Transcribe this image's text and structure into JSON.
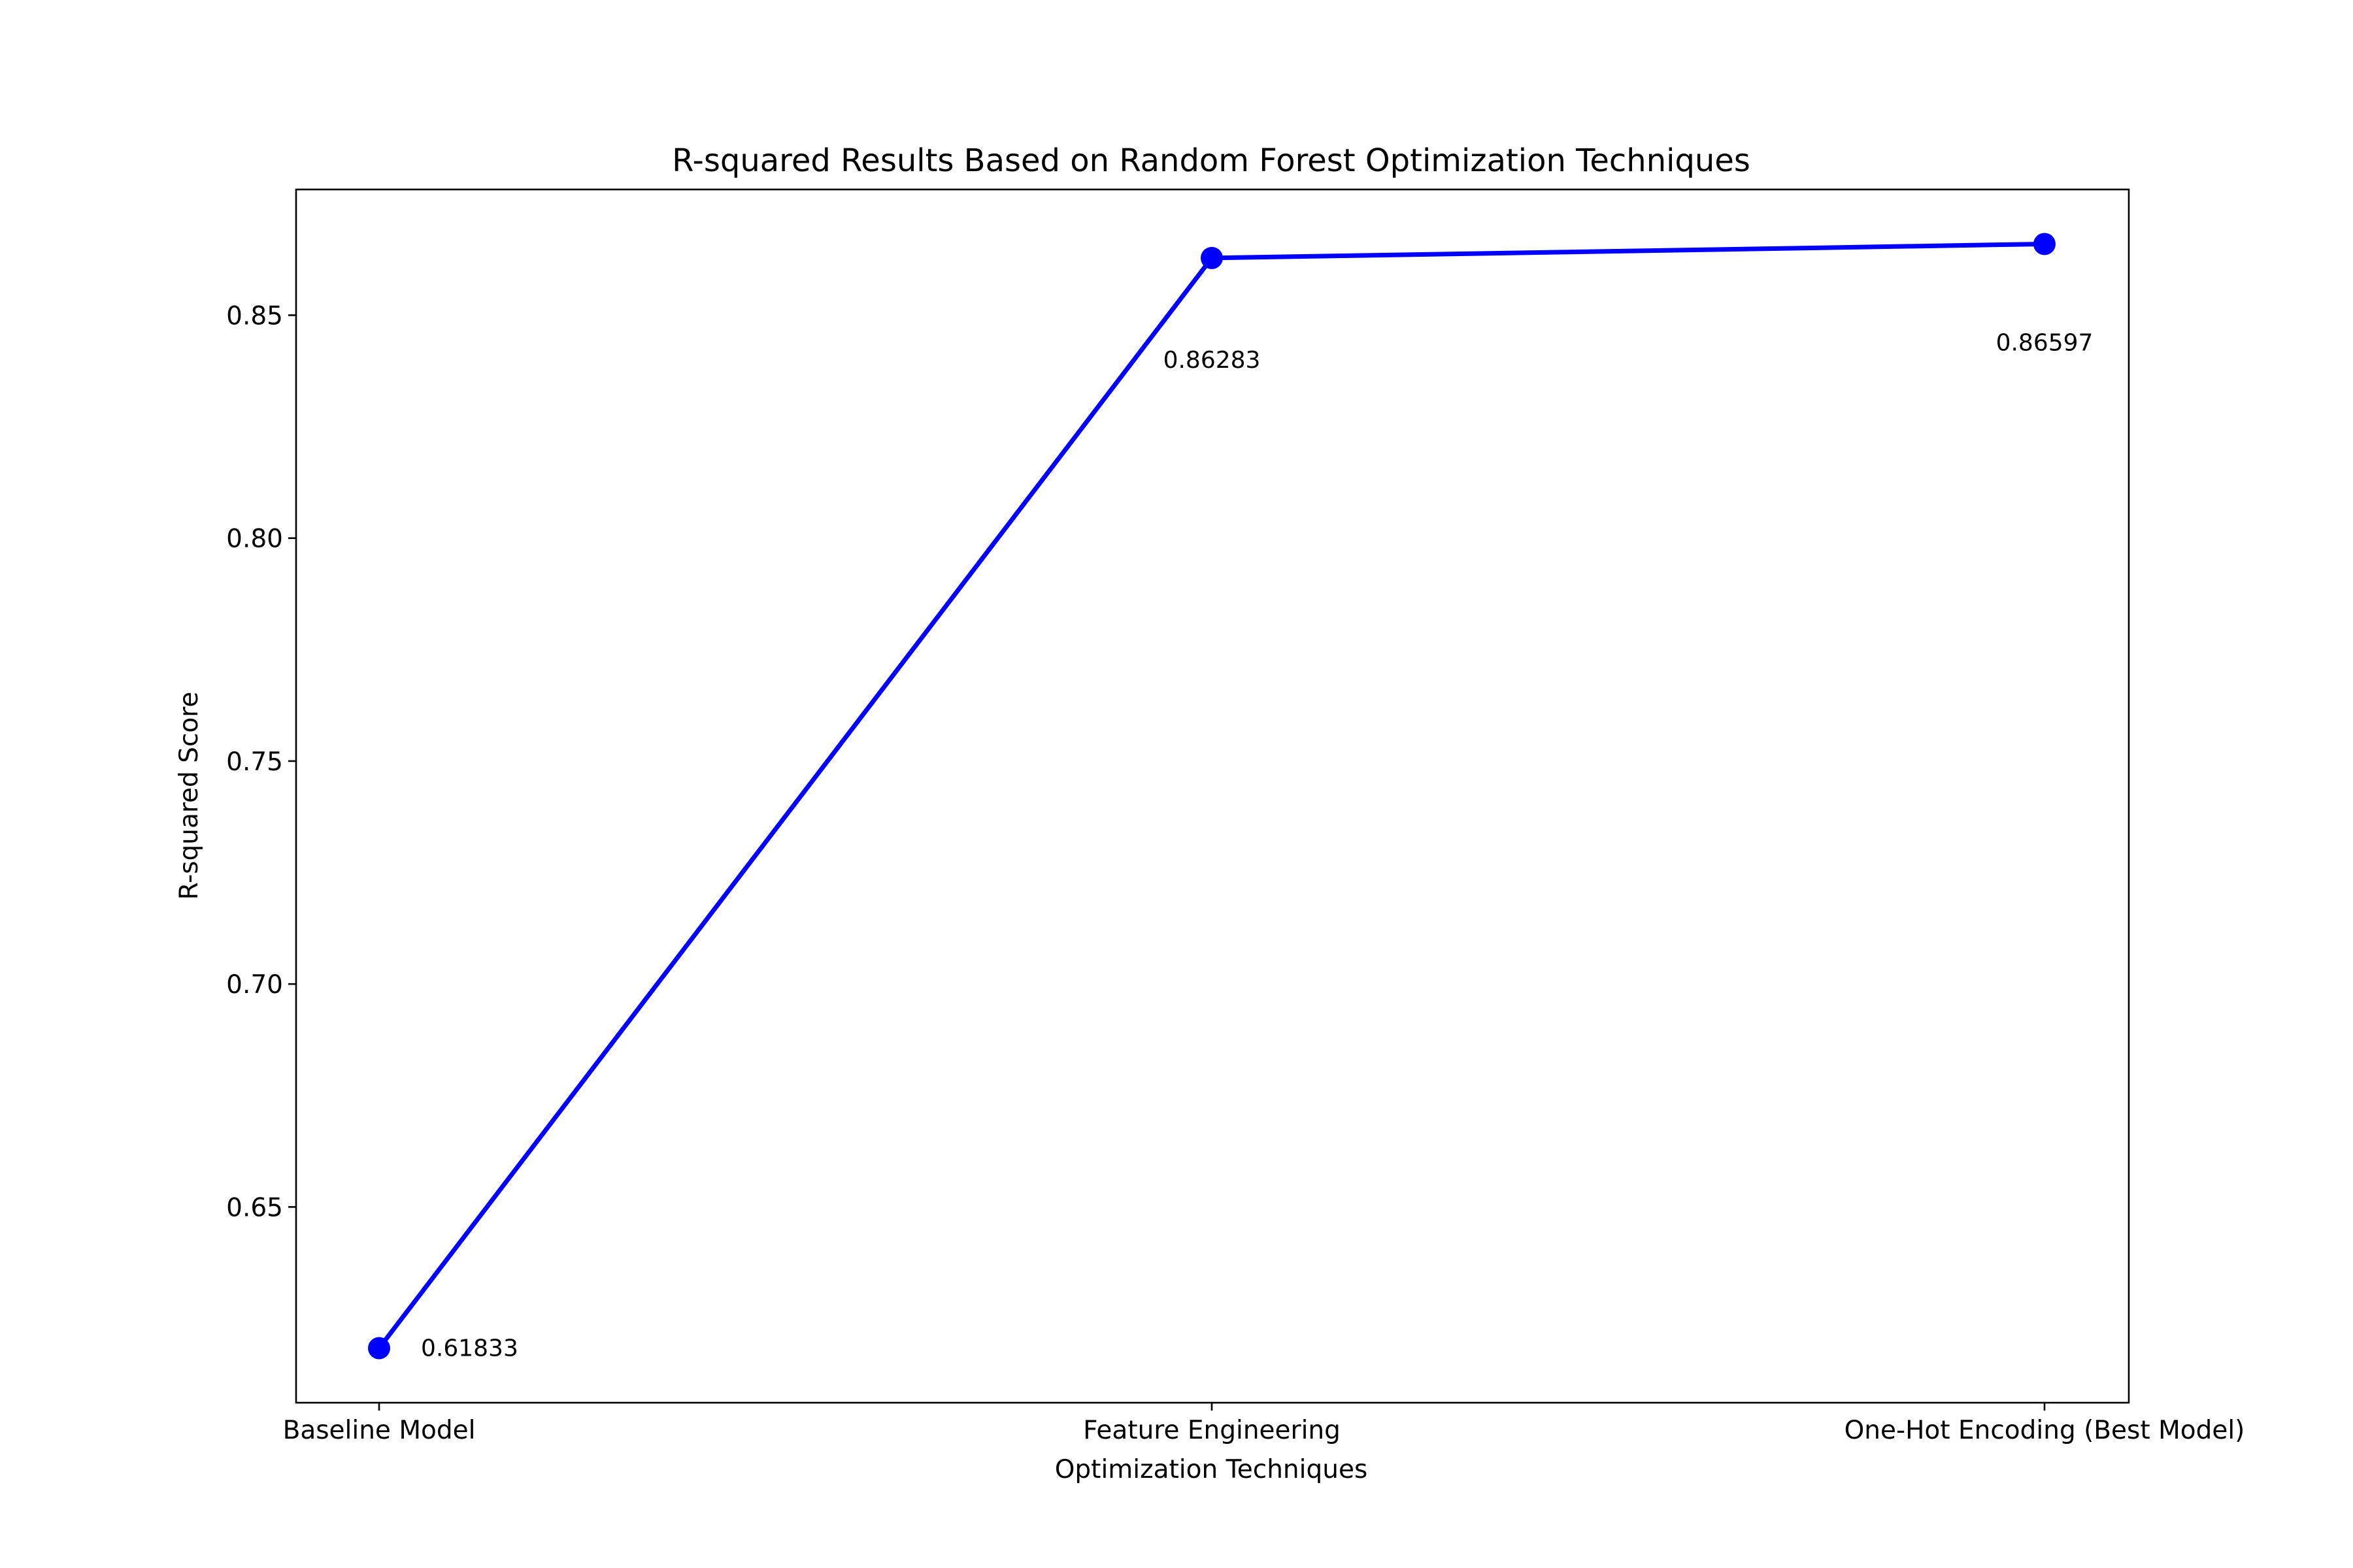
{
  "chart_data": {
    "type": "line",
    "title": "R-squared Results Based on Random Forest Optimization Techniques",
    "xlabel": "Optimization Techniques",
    "ylabel": "R-squared Score",
    "categories": [
      "Baseline Model",
      "Feature Engineering",
      "One-Hot Encoding (Best Model)"
    ],
    "series": [
      {
        "values": [
          0.61833,
          0.86283,
          0.86597
        ],
        "data_labels": [
          "0.61833",
          "0.86283",
          "0.86597"
        ],
        "color": "#0000ff",
        "marker": "circle"
      }
    ],
    "ylim": [
      0.6061,
      0.8782
    ],
    "yticks": [
      0.65,
      0.7,
      0.75,
      0.8,
      0.85
    ],
    "ytick_labels": [
      "0.65",
      "0.70",
      "0.75",
      "0.80",
      "0.85"
    ],
    "grid": false,
    "legend": "none"
  }
}
